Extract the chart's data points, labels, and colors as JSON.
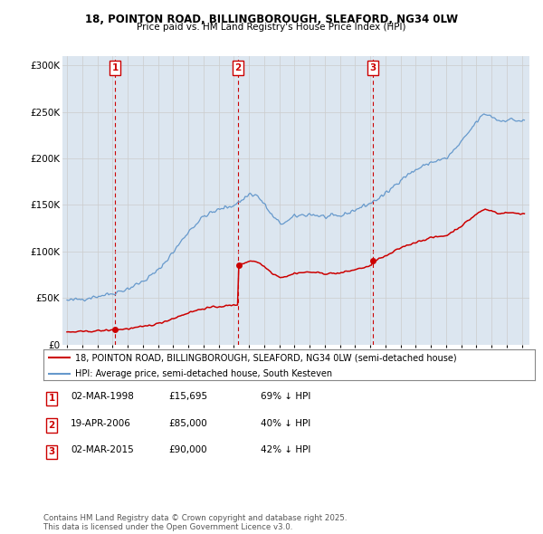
{
  "title1": "18, POINTON ROAD, BILLINGBOROUGH, SLEAFORD, NG34 0LW",
  "title2": "Price paid vs. HM Land Registry's House Price Index (HPI)",
  "sale_dates_decimal": [
    1998.167,
    2006.292,
    2015.167
  ],
  "sale_prices": [
    15695,
    85000,
    90000
  ],
  "sale_labels": [
    "1",
    "2",
    "3"
  ],
  "sale_table": [
    {
      "label": "1",
      "date": "02-MAR-1998",
      "price": "£15,695",
      "hpi": "69% ↓ HPI"
    },
    {
      "label": "2",
      "date": "19-APR-2006",
      "price": "£85,000",
      "hpi": "40% ↓ HPI"
    },
    {
      "label": "3",
      "date": "02-MAR-2015",
      "price": "£90,000",
      "hpi": "42% ↓ HPI"
    }
  ],
  "legend_line1": "18, POINTON ROAD, BILLINGBOROUGH, SLEAFORD, NG34 0LW (semi-detached house)",
  "legend_line2": "HPI: Average price, semi-detached house, South Kesteven",
  "footnote": "Contains HM Land Registry data © Crown copyright and database right 2025.\nThis data is licensed under the Open Government Licence v3.0.",
  "price_line_color": "#cc0000",
  "hpi_line_color": "#6699cc",
  "sale_marker_color": "#cc0000",
  "vline_color": "#cc0000",
  "grid_color": "#cccccc",
  "chart_bg_color": "#dce6f0",
  "bg_color": "#ffffff",
  "ylim": [
    0,
    310000
  ],
  "yticks": [
    0,
    50000,
    100000,
    150000,
    200000,
    250000,
    300000
  ],
  "ytick_labels": [
    "£0",
    "£50K",
    "£100K",
    "£150K",
    "£200K",
    "£250K",
    "£300K"
  ],
  "xlim_left": 1994.7,
  "xlim_right": 2025.5
}
